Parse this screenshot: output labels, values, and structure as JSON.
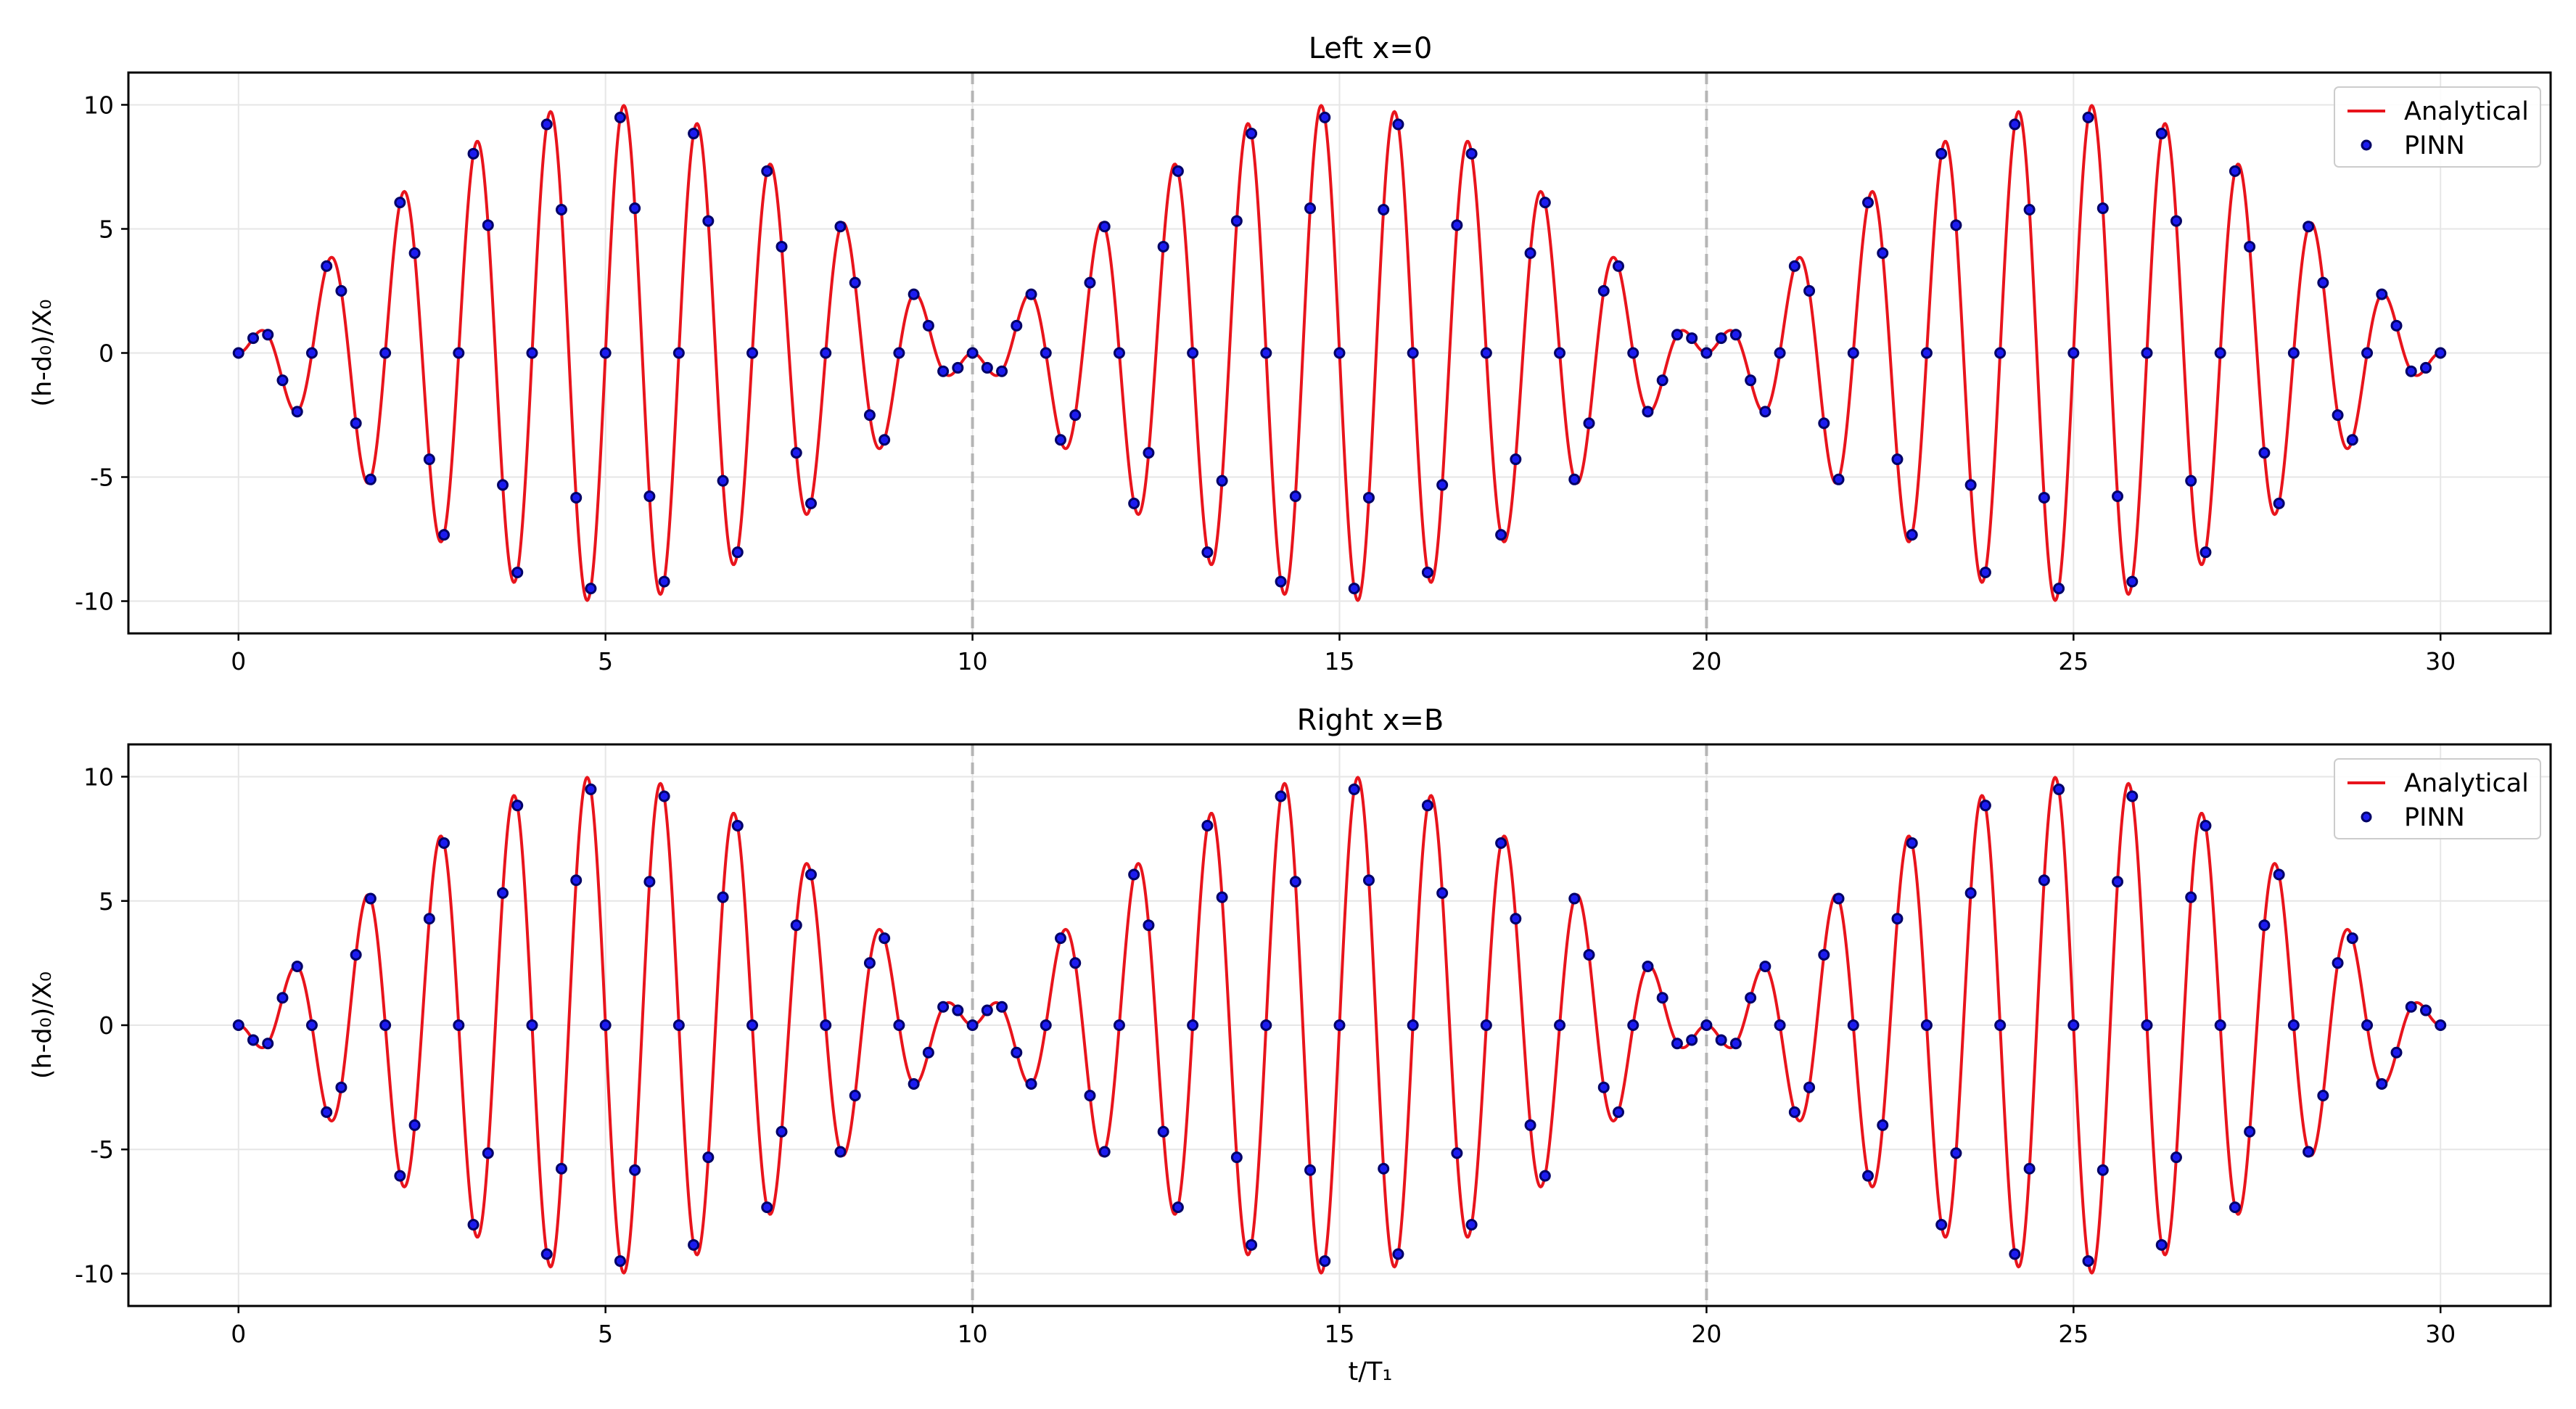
{
  "chart_data": [
    {
      "type": "line",
      "title": "Left x=0",
      "xlabel": "",
      "ylabel": "(h-d₀)/X₀",
      "xlim": [
        -1.5,
        31.5
      ],
      "ylim": [
        -11.3,
        11.3
      ],
      "xticks": [
        0,
        5,
        10,
        15,
        20,
        25,
        30
      ],
      "xtick_labels": [
        "0",
        "5",
        "10",
        "15",
        "20",
        "25",
        "30"
      ],
      "yticks": [
        10,
        5,
        0,
        -5,
        -10
      ],
      "ytick_labels": [
        "10",
        "5",
        "0",
        "-5",
        "-10"
      ],
      "grid": true,
      "vertical_dashed_lines": [
        10,
        20
      ],
      "legend": {
        "position": "top-right",
        "entries": [
          "Analytical",
          "PINN"
        ]
      },
      "series": [
        {
          "name": "Analytical",
          "style": "line",
          "color": "#e8141c",
          "function": "10*sin(pi*t/10)*sin(2*pi*t)",
          "t_range": [
            0,
            30
          ]
        },
        {
          "name": "PINN",
          "style": "markers",
          "color": "#1c1cf0",
          "edge_color": "#000066",
          "x_start": 0,
          "x_step": 0.2,
          "count": 151
        }
      ]
    },
    {
      "type": "line",
      "title": "Right x=B",
      "xlabel": "t/T₁",
      "ylabel": "(h-d₀)/X₀",
      "xlim": [
        -1.5,
        31.5
      ],
      "ylim": [
        -11.3,
        11.3
      ],
      "xticks": [
        0,
        5,
        10,
        15,
        20,
        25,
        30
      ],
      "xtick_labels": [
        "0",
        "5",
        "10",
        "15",
        "20",
        "25",
        "30"
      ],
      "yticks": [
        10,
        5,
        0,
        -5,
        -10
      ],
      "ytick_labels": [
        "10",
        "5",
        "0",
        "-5",
        "-10"
      ],
      "grid": true,
      "vertical_dashed_lines": [
        10,
        20
      ],
      "legend": {
        "position": "top-right",
        "entries": [
          "Analytical",
          "PINN"
        ]
      },
      "series": [
        {
          "name": "Analytical",
          "style": "line",
          "color": "#e8141c",
          "function": "-10*sin(pi*t/10)*sin(2*pi*t)",
          "t_range": [
            0,
            30
          ]
        },
        {
          "name": "PINN",
          "style": "markers",
          "color": "#1c1cf0",
          "edge_color": "#000066",
          "x_start": 0,
          "x_step": 0.2,
          "count": 151
        }
      ]
    }
  ]
}
